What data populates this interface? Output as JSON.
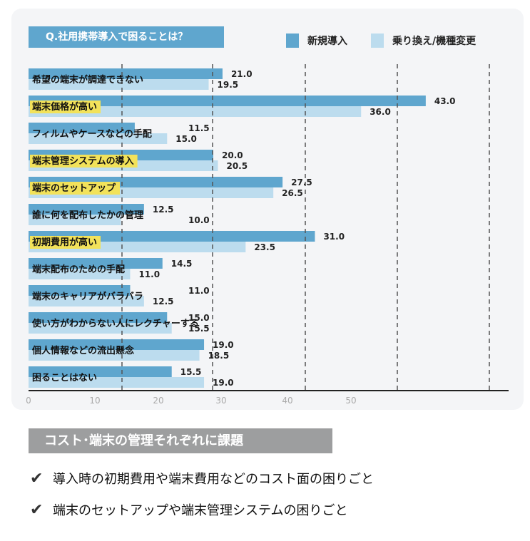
{
  "chart_data": {
    "type": "bar",
    "orientation": "horizontal",
    "title": "Q.社用携帯導入で困ることは？",
    "categories": [
      "希望の端末が調達できない",
      "端末価格が高い",
      "フィルムやケースなどの手配",
      "端末管理システムの導入",
      "端末のセットアップ",
      "誰に何を配布したかの管理",
      "初期費用が高い",
      "端末配布のための手配",
      "端末のキャリアがバラバラ",
      "使い方がわからない人にレクチャーする",
      "個人情報などの流出懸念",
      "困ることはない"
    ],
    "highlighted": [
      false,
      true,
      false,
      true,
      true,
      false,
      true,
      false,
      false,
      false,
      false,
      false
    ],
    "series": [
      {
        "name": "新規導入",
        "color": "#5fa6ce",
        "values": [
          21.0,
          43.0,
          11.5,
          20.0,
          27.5,
          12.5,
          31.0,
          14.5,
          11.0,
          15.0,
          19.0,
          15.5
        ]
      },
      {
        "name": "乗り換え/機種変更",
        "color": "#bcdcee",
        "values": [
          19.5,
          36.0,
          15.0,
          20.5,
          26.5,
          10.0,
          23.5,
          11.0,
          12.5,
          15.5,
          18.5,
          19.0
        ]
      }
    ],
    "value_labels": [
      [
        "21.0",
        "19.5"
      ],
      [
        "43.0",
        "36.0"
      ],
      [
        "11.5",
        "15.0"
      ],
      [
        "20.0",
        "20.5"
      ],
      [
        "27.5",
        "26.5"
      ],
      [
        "12.5",
        "10.0"
      ],
      [
        "31.0",
        "23.5"
      ],
      [
        "14.5",
        "11.0"
      ],
      [
        "11.0",
        "12.5"
      ],
      [
        "15.0",
        "15.5"
      ],
      [
        "19.0",
        "18.5"
      ],
      [
        "15.5",
        "19.0"
      ]
    ],
    "x_ticks": [
      "0",
      "10",
      "20",
      "30",
      "40",
      "50"
    ],
    "xlim": [
      0,
      50
    ],
    "grid": "dashed vertical lines",
    "legend_placement": "top-right",
    "highlight_color": "#f2e25a"
  },
  "summary": {
    "heading": "コスト･端末の管理それぞれに課題",
    "check_icon": "✔",
    "bullets": [
      "導入時の初期費用や端末費用などのコスト面の困りごと",
      "端末のセットアップや端末管理システムの困りごと"
    ]
  }
}
